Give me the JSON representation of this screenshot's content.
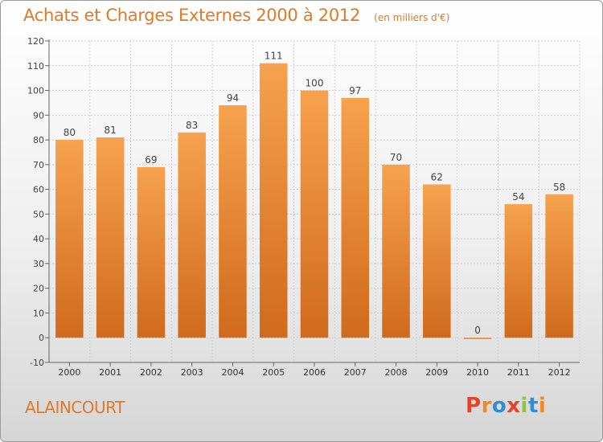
{
  "header": {
    "title": "Achats et Charges Externes 2000 à 2012",
    "unit": "(en milliers d'€)"
  },
  "footer": {
    "commune": "ALAINCOURT",
    "brand": "Proxiti"
  },
  "colors": {
    "title": "#e07a26",
    "bar_top": "#f6a24e",
    "bar_bottom": "#d06a1c",
    "axis": "#666666",
    "grid": "#d0d0d0",
    "brand_letters": [
      "#e8412c",
      "#f08a24",
      "#2f8fd6",
      "#e8412c",
      "#8cc63f",
      "#2f8fd6",
      "#f08a24"
    ]
  },
  "chart_data": {
    "type": "bar",
    "title": "Achats et Charges Externes 2000 à 2012",
    "categories": [
      "2000",
      "2001",
      "2002",
      "2003",
      "2004",
      "2005",
      "2006",
      "2007",
      "2008",
      "2009",
      "2010",
      "2011",
      "2012"
    ],
    "values": [
      80,
      81,
      69,
      83,
      94,
      111,
      100,
      97,
      70,
      62,
      0,
      54,
      58
    ],
    "data_labels": [
      "80",
      "81",
      "69",
      "83",
      "94",
      "111",
      "100",
      "97",
      "70",
      "62",
      "0",
      "54",
      "58"
    ],
    "ylim": [
      -10,
      120
    ],
    "yticks": [
      -10,
      0,
      10,
      20,
      30,
      40,
      50,
      60,
      70,
      80,
      90,
      100,
      110,
      120
    ],
    "ytick_labels": [
      "-10",
      "0",
      "10",
      "20",
      "30",
      "40",
      "50",
      "60",
      "70",
      "80",
      "90",
      "100",
      "110",
      "120"
    ],
    "grid": true,
    "legend": "none"
  }
}
